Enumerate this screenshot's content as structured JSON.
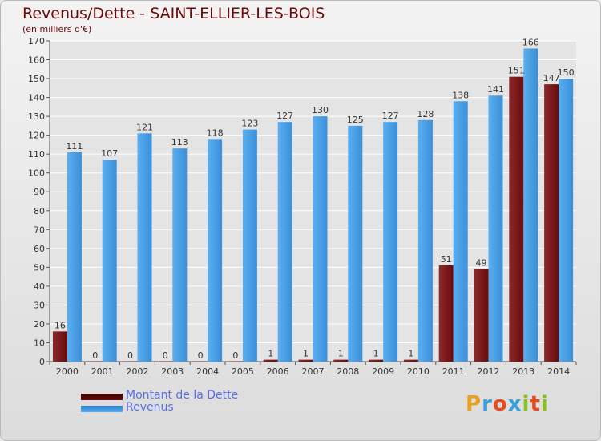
{
  "title": "Revenus/Dette - SAINT-ELLIER-LES-BOIS",
  "subtitle": "(en milliers d'€)",
  "colors": {
    "dette": "#6b0a0a",
    "revenus": "#3a8fd8",
    "text": "#6b0a0a",
    "legend_text": "#5a6fe0"
  },
  "chart_data": {
    "type": "bar",
    "categories": [
      "2000",
      "2001",
      "2002",
      "2003",
      "2004",
      "2005",
      "2006",
      "2007",
      "2008",
      "2009",
      "2010",
      "2011",
      "2012",
      "2013",
      "2014"
    ],
    "series": [
      {
        "name": "Montant de la Dette",
        "values": [
          16,
          0,
          0,
          0,
          0,
          0,
          1,
          1,
          1,
          1,
          1,
          51,
          49,
          151,
          147
        ],
        "value_labels": [
          "16",
          "0",
          "0",
          "0",
          "0",
          "0",
          "1",
          "1",
          "1",
          "1",
          "1",
          "51",
          "49",
          "151",
          "147"
        ]
      },
      {
        "name": "Revenus",
        "values": [
          111,
          107,
          121,
          113,
          118,
          123,
          127,
          130,
          125,
          127,
          128,
          138,
          141,
          166,
          150
        ],
        "value_labels": [
          "111",
          "107",
          "121",
          "113",
          "118",
          "123",
          "127",
          "130",
          "125",
          "127",
          "128",
          "138",
          "141",
          "166",
          "150"
        ]
      }
    ],
    "ylim": [
      0,
      170
    ],
    "yticks": [
      0,
      10,
      20,
      30,
      40,
      50,
      60,
      70,
      80,
      90,
      100,
      110,
      120,
      130,
      140,
      150,
      160,
      170
    ],
    "grid": true,
    "legend": "bottom-left"
  },
  "legend": {
    "dette_label": "Montant de la Dette",
    "revenus_label": "Revenus"
  },
  "logo": {
    "letters": [
      "P",
      "r",
      "o",
      "x",
      "i",
      "t",
      "i"
    ],
    "colors": [
      "#e8a020",
      "#3aa0d8",
      "#e84a20",
      "#3aa0d8",
      "#8ac020",
      "#e84a20",
      "#8ac020"
    ]
  }
}
